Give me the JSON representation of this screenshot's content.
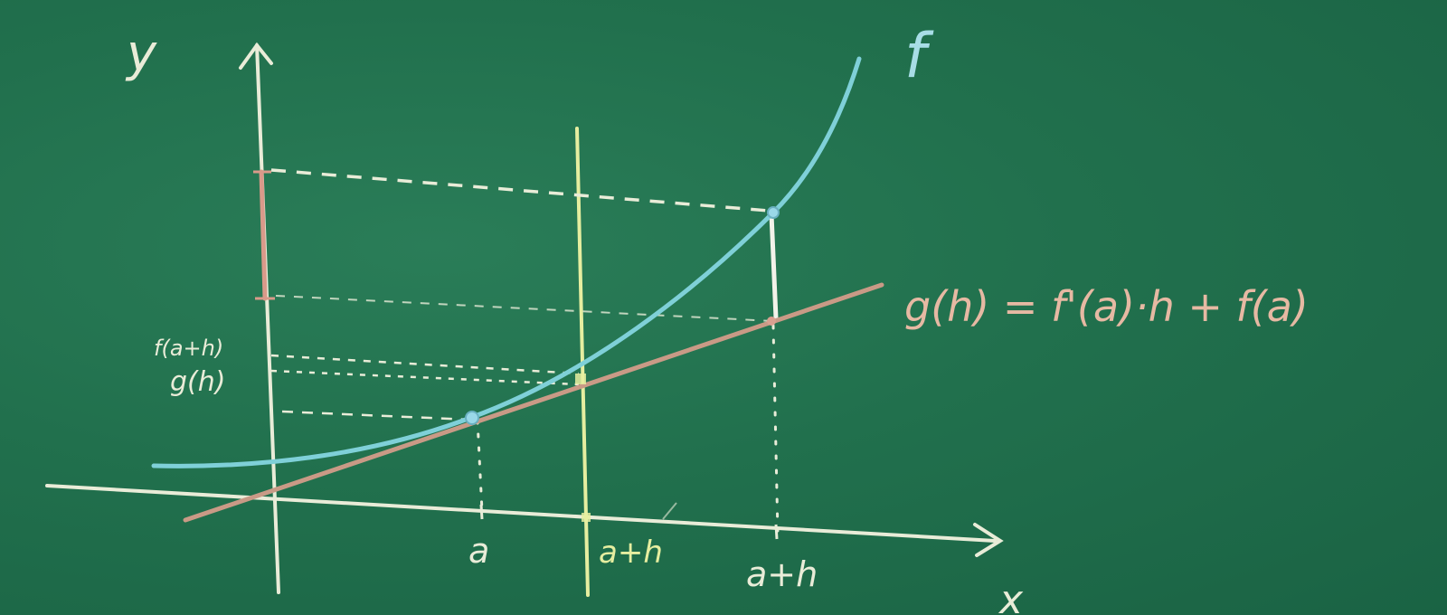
{
  "labels": {
    "y_axis": "y",
    "x_axis": "x",
    "curve": "f",
    "tangent_equation": "g(h) = f'(a)·h + f(a)",
    "x_tick_a": "a",
    "x_tick_mid": "a+h",
    "x_tick_right": "a+h",
    "y_tick_f": "f(a+h)",
    "y_tick_g": "g(h)"
  },
  "colors": {
    "board": "#1f6e4c",
    "chalk_white": "#e9ecd8",
    "curve_blue": "#7fd0d8",
    "tangent_pink": "#c99a86",
    "line_yellow": "#e6eea0",
    "axis_pink": "#d99a8a"
  }
}
